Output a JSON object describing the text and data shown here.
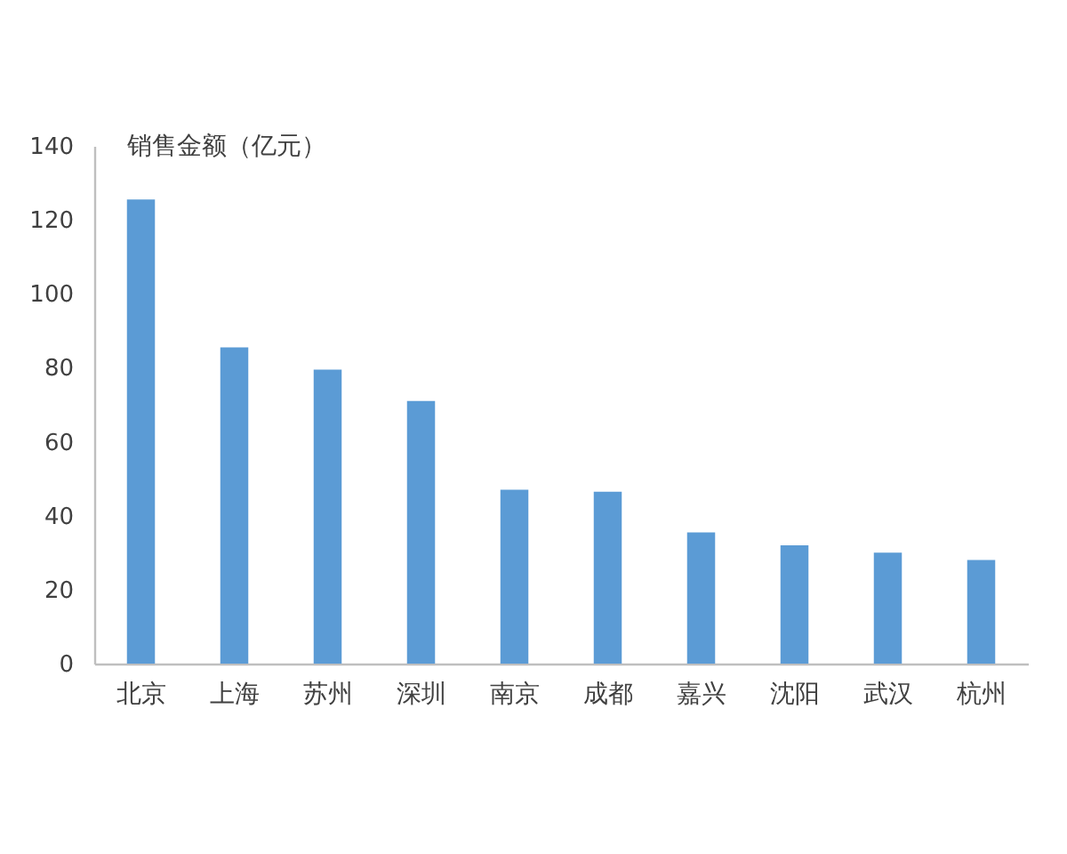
{
  "chart_data": {
    "type": "bar",
    "categories": [
      "北京",
      "上海",
      "苏州",
      "深圳",
      "南京",
      "成都",
      "嘉兴",
      "沈阳",
      "武汉",
      "杭州"
    ],
    "values": [
      125.5,
      85.5,
      79.5,
      71,
      47,
      46.5,
      35.5,
      32,
      30,
      28
    ],
    "color": "#5b9bd5",
    "ylabel": "销售金额（亿元）",
    "ylim": [
      0,
      140
    ],
    "yticks": [
      0,
      20,
      40,
      60,
      80,
      100,
      120,
      140
    ]
  }
}
